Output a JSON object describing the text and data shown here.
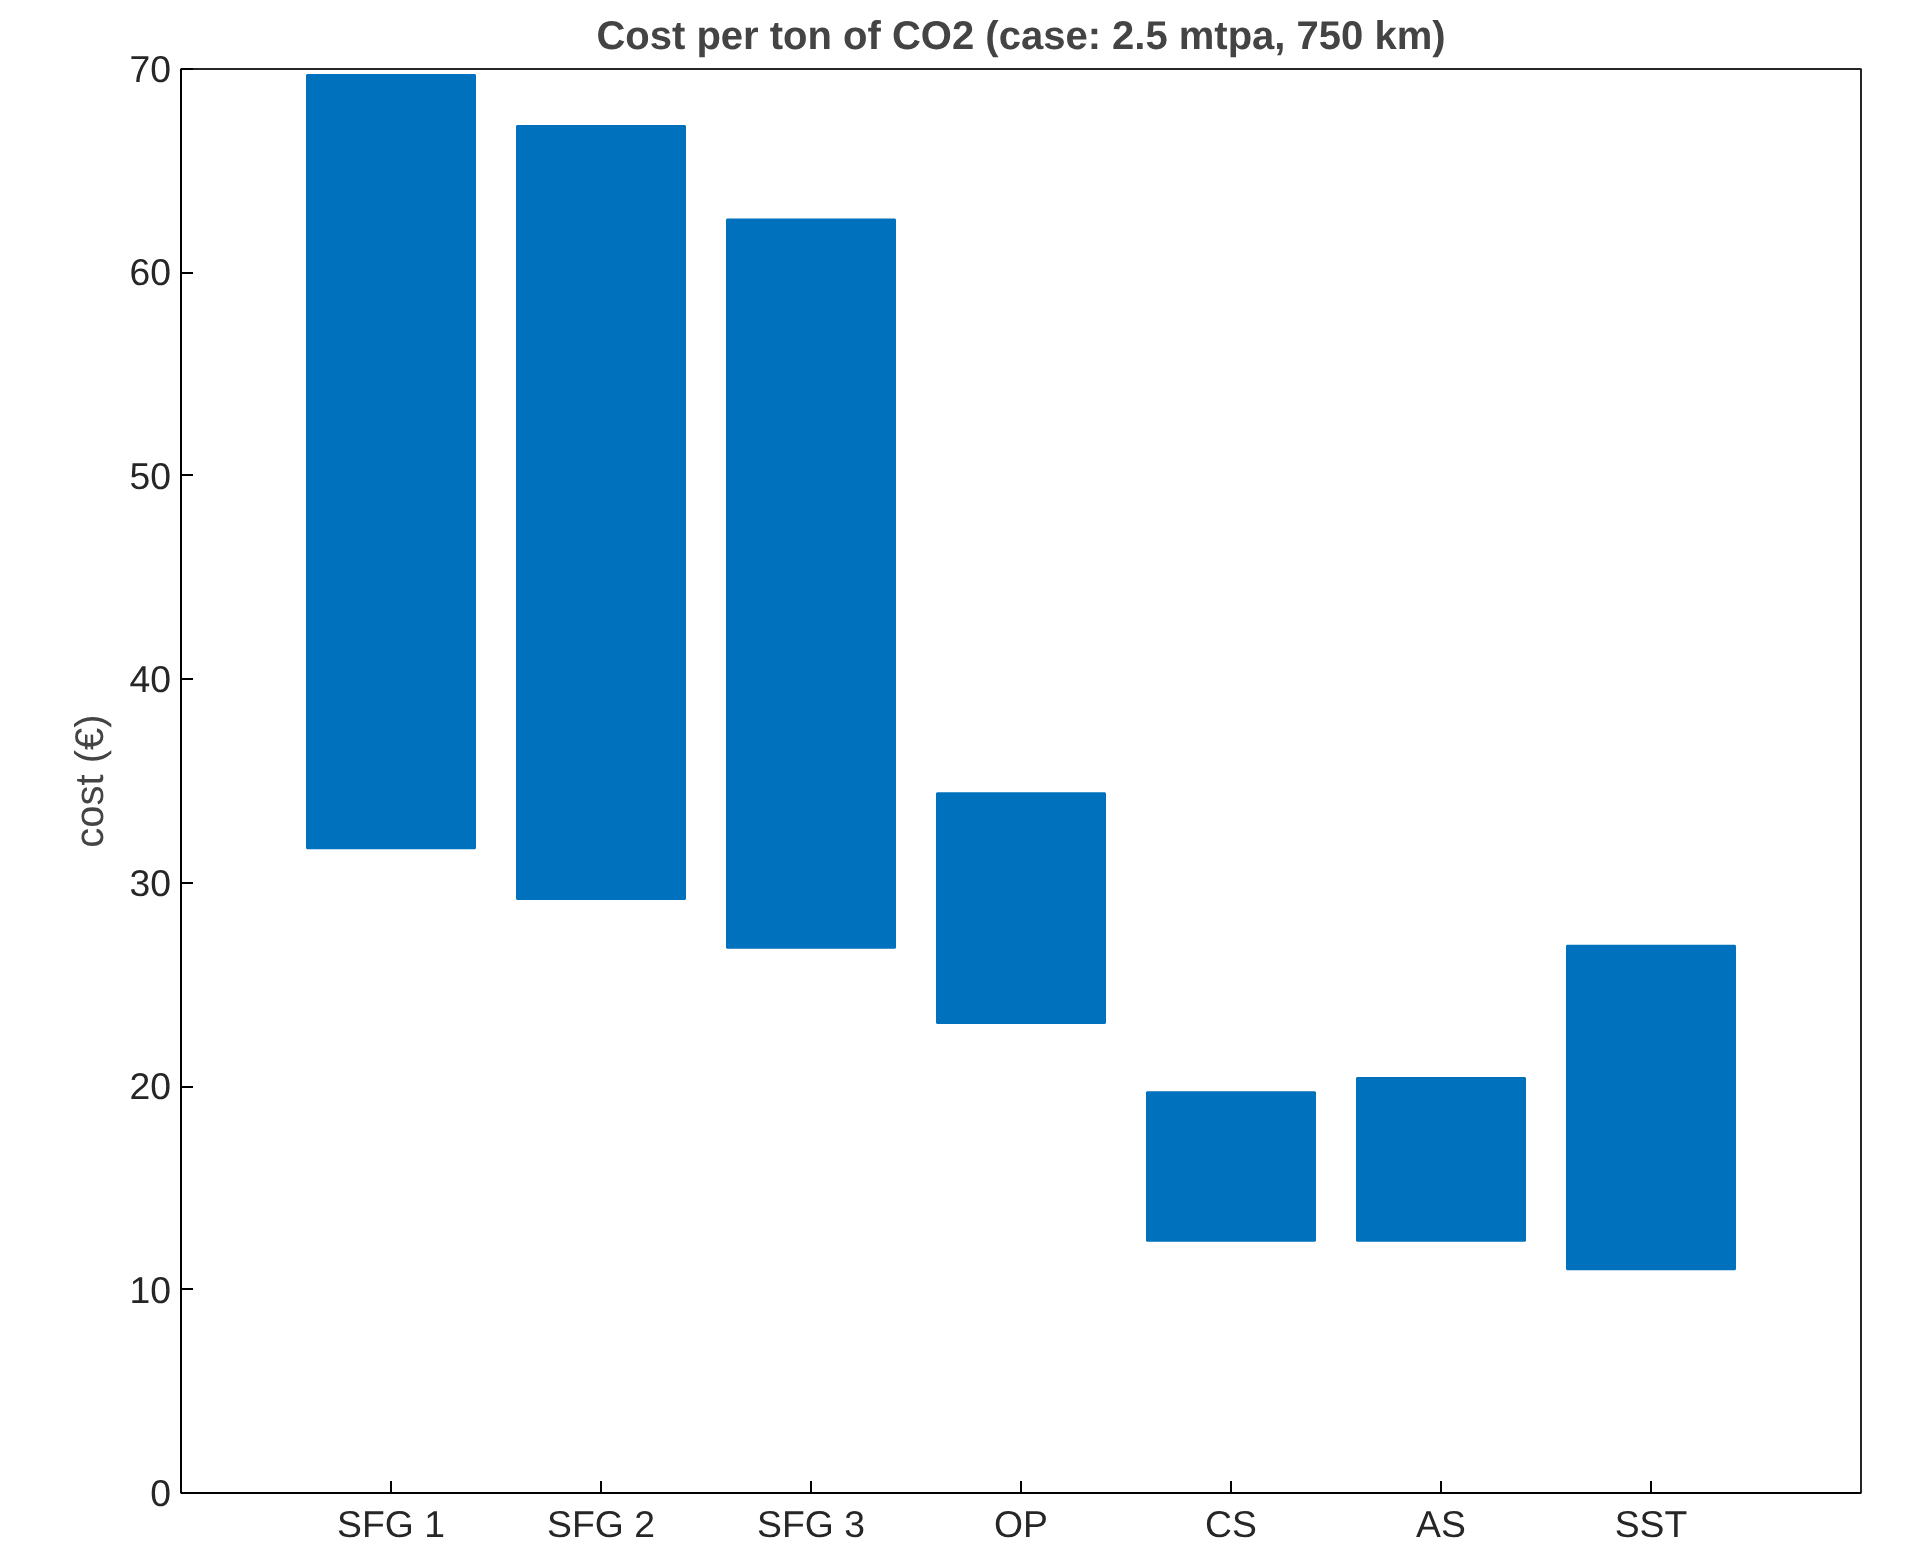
{
  "chart_data": {
    "type": "bar",
    "title": "Cost per ton of CO2 (case: 2.5 mtpa, 750 km)",
    "ylabel": "cost (€)",
    "categories": [
      "SFG 1",
      "SFG 2",
      "SFG 3",
      "OP",
      "CS",
      "AS",
      "SST"
    ],
    "base": [
      31.7,
      29.2,
      26.8,
      23.1,
      12.4,
      12.4,
      11.0
    ],
    "values": [
      38.0,
      38.0,
      35.8,
      11.3,
      7.3,
      8.0,
      15.9
    ],
    "color": "#0072bd",
    "ylim": [
      0,
      70
    ],
    "yticks": [
      0,
      10,
      20,
      30,
      40,
      50,
      60,
      70
    ],
    "grid": false
  }
}
